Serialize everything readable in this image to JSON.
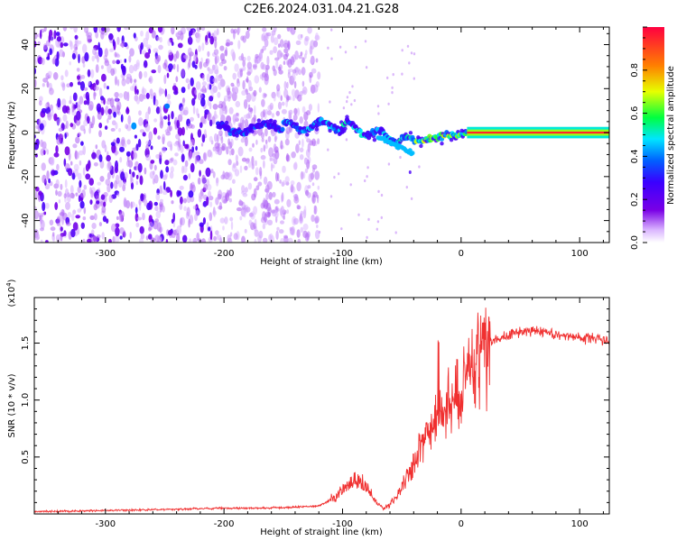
{
  "title": "C2E6.2024.031.04.21.G28",
  "chart_data": [
    {
      "type": "heatmap",
      "name": "spectrogram",
      "xlabel": "Height of straight line (km)",
      "ylabel": "Frequency (Hz)",
      "xlim": [
        -360,
        125
      ],
      "ylim": [
        -50,
        48
      ],
      "x_ticks": [
        -300,
        -200,
        -100,
        0,
        100
      ],
      "y_ticks": [
        -40,
        -20,
        0,
        20,
        40
      ],
      "colorbar": {
        "label": "Normalized spectral amplitude",
        "range": [
          0,
          1
        ],
        "ticks": [
          0.0,
          0.2,
          0.4,
          0.6,
          0.8
        ],
        "colors": [
          "#ffffff",
          "#d9b3ff",
          "#7a00e6",
          "#3a00ff",
          "#0060ff",
          "#00e5ff",
          "#00ff40",
          "#e6ff00",
          "#ff8000",
          "#ff0040"
        ]
      },
      "features": [
        {
          "x_range": [
            -360,
            -120
          ],
          "freq_range": [
            -50,
            48
          ],
          "amplitude": 0.1
        },
        {
          "x_range": [
            -280,
            -272
          ],
          "freq_center": 3,
          "amplitude": 0.35
        },
        {
          "x_range": [
            -252,
            -245
          ],
          "freq_center": 12,
          "amplitude": 0.35
        },
        {
          "x_range": [
            -200,
            -100
          ],
          "freq_center": 2,
          "amplitude": 0.4
        },
        {
          "x_range": [
            -100,
            -35
          ],
          "freq_center": -3,
          "amplitude": 0.55
        },
        {
          "x_range": [
            -35,
            5
          ],
          "freq_center": 0,
          "amplitude": 0.75
        },
        {
          "x_range": [
            5,
            125
          ],
          "freq_center": 0,
          "amplitude": 0.95
        }
      ]
    },
    {
      "type": "line",
      "name": "snr",
      "xlabel": "Height of straight line (km)",
      "ylabel": "SNR (10 * v/v)",
      "y_multiplier": "(x10",
      "y_exponent": "4",
      "xlim": [
        -360,
        125
      ],
      "ylim": [
        0,
        19000
      ],
      "x_ticks": [
        -300,
        -200,
        -100,
        0,
        100
      ],
      "y_ticks": [
        5000,
        10000,
        15000
      ],
      "y_tick_labels": [
        "0.5",
        "1.0",
        "1.5"
      ],
      "series": [
        {
          "color": "#f03030",
          "x": [
            -360,
            -300,
            -250,
            -200,
            -150,
            -120,
            -105,
            -95,
            -90,
            -85,
            -80,
            -75,
            -70,
            -65,
            -60,
            -55,
            -50,
            -45,
            -40,
            -35,
            -30,
            -25,
            -20,
            -15,
            -10,
            -5,
            0,
            5,
            10,
            15,
            20,
            25,
            30,
            40,
            50,
            60,
            70,
            80,
            90,
            100,
            110,
            125
          ],
          "y": [
            200,
            300,
            400,
            500,
            550,
            700,
            1500,
            2500,
            3000,
            2800,
            2500,
            1500,
            800,
            500,
            800,
            1500,
            2500,
            3500,
            4500,
            5500,
            6500,
            7500,
            8500,
            9000,
            9500,
            10000,
            10500,
            11500,
            13000,
            14000,
            14500,
            15000,
            15300,
            15800,
            16000,
            16100,
            16000,
            15800,
            15600,
            15500,
            15400,
            15300
          ]
        }
      ]
    }
  ]
}
